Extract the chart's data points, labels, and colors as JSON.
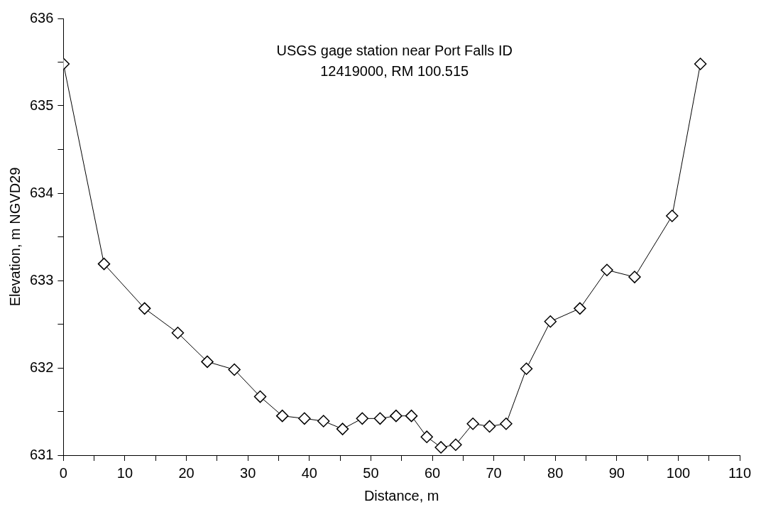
{
  "chart_data": {
    "type": "line",
    "xlabel": "Distance, m",
    "ylabel": "Elevation, m NGVD29",
    "annotations": [
      "USGS gage station near Port Falls ID",
      "12419000, RM 100.515"
    ],
    "xlim": [
      0,
      110
    ],
    "xticks": [
      0,
      {
        "value": 5,
        "label": null
      },
      10,
      {
        "value": 15,
        "label": null
      },
      20,
      {
        "value": 25,
        "label": null
      },
      30,
      {
        "value": 35,
        "label": null
      },
      40,
      {
        "value": 45,
        "label": null
      },
      50,
      {
        "value": 55,
        "label": null
      },
      60,
      {
        "value": 65,
        "label": null
      },
      70,
      {
        "value": 75,
        "label": null
      },
      80,
      {
        "value": 85,
        "label": null
      },
      90,
      {
        "value": 95,
        "label": null
      },
      100,
      {
        "value": 105,
        "label": null
      },
      110
    ],
    "ylim": [
      631,
      636
    ],
    "yticks": [
      631,
      {
        "value": 631.5,
        "label": null
      },
      632,
      {
        "value": 632.5,
        "label": null
      },
      633,
      {
        "value": 633.5,
        "label": null
      },
      634,
      {
        "value": 634.5,
        "label": null
      },
      635,
      {
        "value": 635.5,
        "label": null
      },
      636
    ],
    "marker": "diamond",
    "line_style": "solid",
    "series": [
      {
        "color": "#000000",
        "x": [
          0,
          6.6,
          13.2,
          18.6,
          23.4,
          27.8,
          32.0,
          35.6,
          39.2,
          42.3,
          45.4,
          48.6,
          51.5,
          54.1,
          56.6,
          59.1,
          61.4,
          63.8,
          66.6,
          69.3,
          72.0,
          75.3,
          79.2,
          84.0,
          88.4,
          92.9,
          99.0,
          103.6
        ],
        "values": [
          635.48,
          633.19,
          632.68,
          632.4,
          632.07,
          631.98,
          631.67,
          631.45,
          631.42,
          631.39,
          631.3,
          631.42,
          631.42,
          631.45,
          631.45,
          631.21,
          631.09,
          631.12,
          631.36,
          631.33,
          631.36,
          631.99,
          632.53,
          632.68,
          633.12,
          633.04,
          633.74,
          635.48
        ]
      }
    ]
  }
}
